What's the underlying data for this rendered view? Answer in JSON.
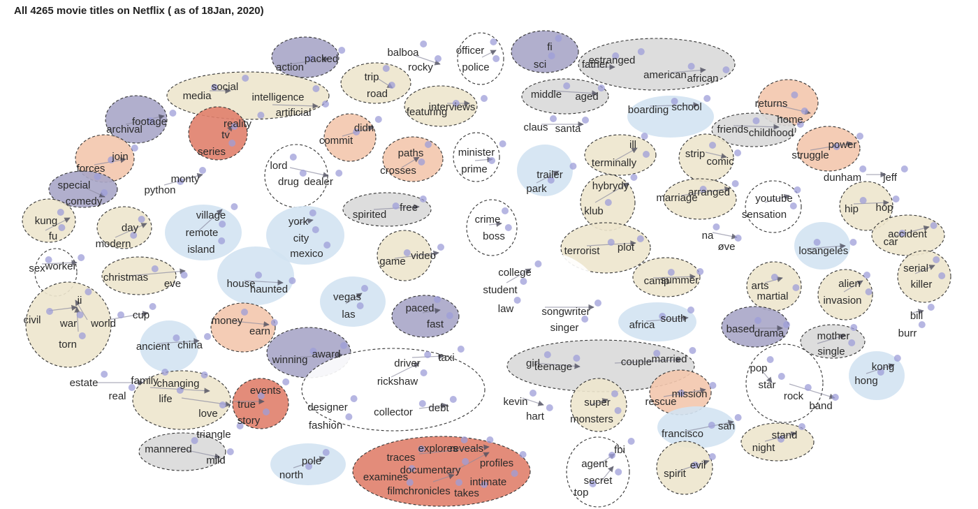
{
  "title": "All 4265 movie titles on Netflix ( as of 18Jan, 2020)",
  "colors": {
    "purple": "#a9a6c8",
    "blue": "#d3e3f2",
    "beige": "#ede6cd",
    "peach": "#f3c7ad",
    "red": "#e0806b",
    "grey": "#d9d9d9",
    "white": "#ffffff",
    "node": "#9e9ed8",
    "arrow": "#555566"
  },
  "clusters": [
    {
      "name": "action-packed",
      "fill": "purple",
      "dashed": true,
      "words": [
        "action",
        "packed"
      ]
    },
    {
      "name": "balboa-rocky",
      "fill": "white",
      "dashed": false,
      "words": [
        "balboa",
        "rocky"
      ]
    },
    {
      "name": "officer-police",
      "fill": "white",
      "dashed": true,
      "words": [
        "officer",
        "police"
      ]
    },
    {
      "name": "sci-fi",
      "fill": "purple",
      "dashed": true,
      "words": [
        "fi",
        "sci"
      ]
    },
    {
      "name": "african-american",
      "fill": "grey",
      "dashed": true,
      "words": [
        "estranged",
        "father",
        "american",
        "african"
      ]
    },
    {
      "name": "media-intelligence",
      "fill": "beige",
      "dashed": true,
      "words": [
        "media",
        "social",
        "intelligence",
        "artificial"
      ]
    },
    {
      "name": "trip-road",
      "fill": "beige",
      "dashed": true,
      "words": [
        "trip",
        "road"
      ]
    },
    {
      "name": "interviews",
      "fill": "beige",
      "dashed": true,
      "words": [
        "interviews",
        "featuring"
      ]
    },
    {
      "name": "middle-aged",
      "fill": "grey",
      "dashed": true,
      "words": [
        "middle",
        "aged"
      ]
    },
    {
      "name": "boarding-school",
      "fill": "blue",
      "dashed": false,
      "words": [
        "boarding",
        "school"
      ]
    },
    {
      "name": "returns-home",
      "fill": "peach",
      "dashed": true,
      "words": [
        "returns",
        "home"
      ]
    },
    {
      "name": "archival-footage",
      "fill": "purple",
      "dashed": true,
      "words": [
        "footage",
        "archival"
      ]
    },
    {
      "name": "reality-tv",
      "fill": "red",
      "dashed": true,
      "words": [
        "reality",
        "tv",
        "series"
      ]
    },
    {
      "name": "commit",
      "fill": "peach",
      "dashed": true,
      "words": [
        "didn",
        "commit"
      ]
    },
    {
      "name": "santa-claus",
      "fill": "white",
      "dashed": false,
      "words": [
        "claus",
        "santa"
      ]
    },
    {
      "name": "friends-childhood",
      "fill": "grey",
      "dashed": true,
      "words": [
        "friends",
        "childhood"
      ]
    },
    {
      "name": "struggle-power",
      "fill": "peach",
      "dashed": true,
      "words": [
        "power",
        "struggle"
      ]
    },
    {
      "name": "forces-join",
      "fill": "peach",
      "dashed": true,
      "words": [
        "join",
        "forces"
      ]
    },
    {
      "name": "drug-dealer",
      "fill": "white",
      "dashed": true,
      "words": [
        "lord",
        "drug",
        "dealer"
      ]
    },
    {
      "name": "crosses-paths",
      "fill": "peach",
      "dashed": true,
      "words": [
        "paths",
        "crosses"
      ]
    },
    {
      "name": "prime-minister",
      "fill": "white",
      "dashed": true,
      "words": [
        "minister",
        "prime"
      ]
    },
    {
      "name": "terminally-ill",
      "fill": "beige",
      "dashed": true,
      "words": [
        "ill",
        "terminally"
      ]
    },
    {
      "name": "strip-comic",
      "fill": "beige",
      "dashed": true,
      "words": [
        "strip",
        "comic"
      ]
    },
    {
      "name": "special-comedy",
      "fill": "purple",
      "dashed": true,
      "words": [
        "special",
        "comedy"
      ]
    },
    {
      "name": "monty-python",
      "fill": "white",
      "dashed": false,
      "words": [
        "monty",
        "python"
      ]
    },
    {
      "name": "trailer-park",
      "fill": "blue",
      "dashed": false,
      "words": [
        "trailer",
        "park"
      ]
    },
    {
      "name": "dunham-jeff",
      "fill": "white",
      "dashed": false,
      "words": [
        "dunham",
        "jeff"
      ]
    },
    {
      "name": "hybrydy",
      "fill": "beige",
      "dashed": true,
      "words": [
        "hybrydy",
        "klub"
      ]
    },
    {
      "name": "arranged-marriage",
      "fill": "beige",
      "dashed": true,
      "words": [
        "arranged",
        "marriage"
      ]
    },
    {
      "name": "youtube-sensation",
      "fill": "white",
      "dashed": true,
      "words": [
        "youtube",
        "sensation"
      ]
    },
    {
      "name": "kung-fu",
      "fill": "beige",
      "dashed": true,
      "words": [
        "kung",
        "fu"
      ]
    },
    {
      "name": "modern-day",
      "fill": "beige",
      "dashed": true,
      "words": [
        "day",
        "modern"
      ]
    },
    {
      "name": "remote-village",
      "fill": "blue",
      "dashed": false,
      "words": [
        "village",
        "remote",
        "island"
      ]
    },
    {
      "name": "new-york",
      "fill": "blue",
      "dashed": false,
      "words": [
        "york",
        "city",
        "mexico"
      ]
    },
    {
      "name": "spirited",
      "fill": "grey",
      "dashed": true,
      "words": [
        "spirited",
        "free"
      ]
    },
    {
      "name": "crime-boss",
      "fill": "white",
      "dashed": true,
      "words": [
        "crime",
        "boss"
      ]
    },
    {
      "name": "hip-hop",
      "fill": "beige",
      "dashed": true,
      "words": [
        "hip",
        "hop"
      ]
    },
    {
      "name": "accident-car",
      "fill": "beige",
      "dashed": true,
      "words": [
        "accident",
        "car"
      ]
    },
    {
      "name": "los-angeles",
      "fill": "blue",
      "dashed": false,
      "words": [
        "angeles",
        "los"
      ]
    },
    {
      "name": "na-ove",
      "fill": "white",
      "dashed": false,
      "words": [
        "na",
        "øve"
      ]
    },
    {
      "name": "terrorist-plot",
      "fill": "beige",
      "dashed": true,
      "words": [
        "terrorist",
        "plot"
      ]
    },
    {
      "name": "sex-worker",
      "fill": "white",
      "dashed": true,
      "words": [
        "sex",
        "worker"
      ]
    },
    {
      "name": "christmas-eve",
      "fill": "beige",
      "dashed": true,
      "words": [
        "christmas",
        "eve"
      ]
    },
    {
      "name": "haunted-house",
      "fill": "blue",
      "dashed": false,
      "words": [
        "house",
        "haunted"
      ]
    },
    {
      "name": "video-game",
      "fill": "beige",
      "dashed": true,
      "words": [
        "game",
        "video"
      ]
    },
    {
      "name": "college-student",
      "fill": "white",
      "dashed": false,
      "words": [
        "college",
        "student",
        "law",
        "songwriter",
        "singer"
      ]
    },
    {
      "name": "summer-camp",
      "fill": "beige",
      "dashed": true,
      "words": [
        "camp",
        "summer"
      ]
    },
    {
      "name": "martial-arts",
      "fill": "beige",
      "dashed": true,
      "words": [
        "arts",
        "martial"
      ]
    },
    {
      "name": "alien-invasion",
      "fill": "beige",
      "dashed": true,
      "words": [
        "alien",
        "invasion"
      ]
    },
    {
      "name": "serial-killer",
      "fill": "beige",
      "dashed": true,
      "words": [
        "serial",
        "killer"
      ]
    },
    {
      "name": "world-war",
      "fill": "beige",
      "dashed": true,
      "words": [
        "ii",
        "civil",
        "war",
        "world",
        "torn"
      ]
    },
    {
      "name": "world-cup",
      "fill": "white",
      "dashed": false,
      "words": [
        "cup"
      ]
    },
    {
      "name": "las-vegas",
      "fill": "blue",
      "dashed": false,
      "words": [
        "vegas",
        "las"
      ]
    },
    {
      "name": "fast-paced",
      "fill": "purple",
      "dashed": true,
      "words": [
        "paced",
        "fast"
      ]
    },
    {
      "name": "south-africa",
      "fill": "blue",
      "dashed": false,
      "words": [
        "africa",
        "south"
      ]
    },
    {
      "name": "bill-burr",
      "fill": "white",
      "dashed": false,
      "words": [
        "bill",
        "burr"
      ]
    },
    {
      "name": "earn-money",
      "fill": "peach",
      "dashed": true,
      "words": [
        "money",
        "earn"
      ]
    },
    {
      "name": "based-drama",
      "fill": "purple",
      "dashed": true,
      "words": [
        "based",
        "drama"
      ]
    },
    {
      "name": "single-mother",
      "fill": "grey",
      "dashed": true,
      "words": [
        "mother",
        "single"
      ]
    },
    {
      "name": "ancient-china",
      "fill": "blue",
      "dashed": false,
      "words": [
        "ancient",
        "china"
      ]
    },
    {
      "name": "award-winning",
      "fill": "purple",
      "dashed": true,
      "words": [
        "winning",
        "award"
      ]
    },
    {
      "name": "taxi-driver",
      "fill": "white",
      "dashed": true,
      "words": [
        "driver",
        "taxi",
        "rickshaw",
        "designer",
        "fashion",
        "collector",
        "debt"
      ]
    },
    {
      "name": "teenage-girl",
      "fill": "grey",
      "dashed": true,
      "words": [
        "girl",
        "teenage",
        "couple",
        "married"
      ]
    },
    {
      "name": "hong-kong",
      "fill": "blue",
      "dashed": false,
      "words": [
        "kong",
        "hong"
      ]
    },
    {
      "name": "pop-star",
      "fill": "white",
      "dashed": true,
      "words": [
        "pop",
        "star",
        "rock",
        "band"
      ]
    },
    {
      "name": "real-estate",
      "fill": "white",
      "dashed": false,
      "words": [
        "estate",
        "real"
      ]
    },
    {
      "name": "changing-life",
      "fill": "beige",
      "dashed": true,
      "words": [
        "family",
        "changing",
        "life",
        "love",
        "triangle"
      ]
    },
    {
      "name": "true-story",
      "fill": "red",
      "dashed": true,
      "words": [
        "events",
        "true",
        "story"
      ]
    },
    {
      "name": "kevin-hart",
      "fill": "white",
      "dashed": false,
      "words": [
        "kevin",
        "hart"
      ]
    },
    {
      "name": "super-monsters",
      "fill": "beige",
      "dashed": true,
      "words": [
        "super",
        "monsters"
      ]
    },
    {
      "name": "rescue-mission",
      "fill": "peach",
      "dashed": true,
      "words": [
        "mission",
        "rescue"
      ]
    },
    {
      "name": "san-francisco",
      "fill": "blue",
      "dashed": false,
      "words": [
        "francisco",
        "san"
      ]
    },
    {
      "name": "stand-night",
      "fill": "beige",
      "dashed": true,
      "words": [
        "stand",
        "night"
      ]
    },
    {
      "name": "mild-mannered",
      "fill": "grey",
      "dashed": true,
      "words": [
        "mannered",
        "mild"
      ]
    },
    {
      "name": "north-pole",
      "fill": "blue",
      "dashed": false,
      "words": [
        "pole",
        "north"
      ]
    },
    {
      "name": "documentary",
      "fill": "red",
      "dashed": true,
      "words": [
        "traces",
        "explores",
        "reveals",
        "profiles",
        "documentary",
        "examines",
        "intimate",
        "film",
        "chronicles",
        "takes"
      ]
    },
    {
      "name": "fbi-agent",
      "fill": "white",
      "dashed": true,
      "words": [
        "fbi",
        "agent",
        "secret",
        "top"
      ]
    },
    {
      "name": "evil-spirit",
      "fill": "beige",
      "dashed": true,
      "words": [
        "evil",
        "spirit"
      ]
    }
  ]
}
